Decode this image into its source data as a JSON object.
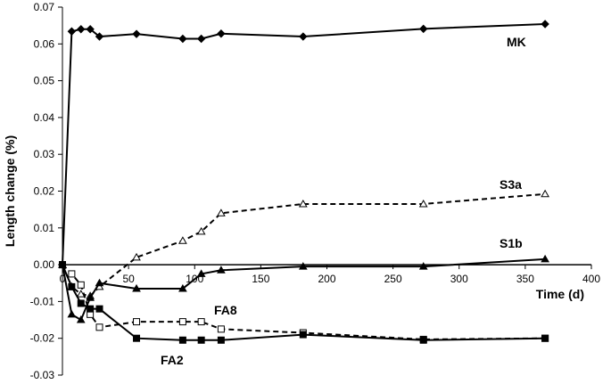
{
  "chart_data": {
    "type": "line",
    "title": "",
    "xlabel": "Time (d)",
    "ylabel": "Length change (%)",
    "xlim": [
      0,
      400
    ],
    "ylim": [
      -0.03,
      0.07
    ],
    "x_ticks": [
      "0",
      "50",
      "100",
      "150",
      "200",
      "250",
      "300",
      "350",
      "400"
    ],
    "y_ticks": [
      "-0.03",
      "-0.02",
      "-0.01",
      "0.00",
      "0.01",
      "0.02",
      "0.03",
      "0.04",
      "0.05",
      "0.06",
      "0.07"
    ],
    "grid": false,
    "legend": "none",
    "series": [
      {
        "name": "MK",
        "marker": "filled-diamond",
        "line": "solid",
        "color": "#000000",
        "x": [
          0,
          7,
          14,
          21,
          28,
          56,
          91,
          105,
          120,
          182,
          273,
          365
        ],
        "y": [
          0.0,
          0.0634,
          0.064,
          0.064,
          0.062,
          0.0627,
          0.0614,
          0.0614,
          0.0628,
          0.062,
          0.0641,
          0.0654
        ]
      },
      {
        "name": "S3a",
        "marker": "open-triangle",
        "line": "dashed",
        "color": "#000000",
        "x": [
          0,
          7,
          14,
          21,
          28,
          56,
          91,
          105,
          120,
          182,
          273,
          365
        ],
        "y": [
          0.0,
          -0.006,
          -0.008,
          -0.0085,
          -0.006,
          0.002,
          0.0065,
          0.009,
          0.014,
          0.0165,
          0.0165,
          0.0192
        ]
      },
      {
        "name": "S1b",
        "marker": "filled-triangle",
        "line": "solid",
        "color": "#000000",
        "x": [
          0,
          7,
          14,
          21,
          28,
          56,
          91,
          105,
          120,
          182,
          273,
          365
        ],
        "y": [
          0.0,
          -0.0135,
          -0.015,
          -0.009,
          -0.005,
          -0.0065,
          -0.0065,
          -0.0025,
          -0.0015,
          -0.0005,
          -0.0005,
          0.0015
        ]
      },
      {
        "name": "FA8",
        "marker": "open-square",
        "line": "dashed",
        "color": "#000000",
        "x": [
          0,
          7,
          14,
          21,
          28,
          56,
          91,
          105,
          120,
          182,
          273,
          365
        ],
        "y": [
          0.0,
          -0.0025,
          -0.0055,
          -0.0135,
          -0.017,
          -0.0155,
          -0.0155,
          -0.0155,
          -0.0175,
          -0.0185,
          -0.0203,
          -0.02
        ]
      },
      {
        "name": "FA2",
        "marker": "filled-square",
        "line": "solid",
        "color": "#000000",
        "x": [
          0,
          7,
          14,
          21,
          28,
          56,
          91,
          105,
          120,
          182,
          273,
          365
        ],
        "y": [
          0.0,
          -0.006,
          -0.0105,
          -0.012,
          -0.012,
          -0.02,
          -0.0205,
          -0.0205,
          -0.0205,
          -0.019,
          -0.0205,
          -0.02
        ]
      }
    ]
  }
}
